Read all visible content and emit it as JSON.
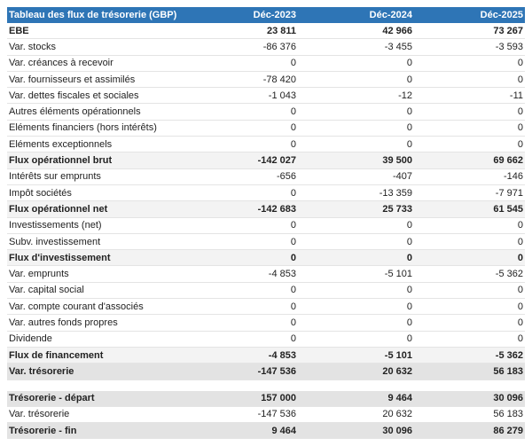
{
  "header": {
    "title": "Tableau des flux de trésorerie (GBP)",
    "columns": [
      "Déc-2023",
      "Déc-2024",
      "Déc-2025"
    ]
  },
  "sections": [
    {
      "rows": [
        [
          "EBE",
          "23 811",
          "42 966",
          "73 267"
        ],
        [
          "Var. stocks",
          "-86 376",
          "-3 455",
          "-3 593"
        ],
        [
          "Var. créances à recevoir",
          "0",
          "0",
          "0"
        ],
        [
          "Var. fournisseurs et assimilés",
          "-78 420",
          "0",
          "0"
        ],
        [
          "Var. dettes fiscales et sociales",
          "-1 043",
          "-12",
          "-11"
        ],
        [
          "Autres éléments opérationnels",
          "0",
          "0",
          "0"
        ],
        [
          "Eléments financiers (hors intérêts)",
          "0",
          "0",
          "0"
        ],
        [
          "Eléments exceptionnels",
          "0",
          "0",
          "0"
        ],
        [
          "Flux opérationnel brut",
          "-142 027",
          "39 500",
          "69 662"
        ],
        [
          "Intérêts sur emprunts",
          "-656",
          "-407",
          "-146"
        ],
        [
          "Impôt sociétés",
          "0",
          "-13 359",
          "-7 971"
        ],
        [
          "Flux opérationnel net",
          "-142 683",
          "25 733",
          "61 545"
        ],
        [
          "Investissements (net)",
          "0",
          "0",
          "0"
        ],
        [
          "Subv. investissement",
          "0",
          "0",
          "0"
        ],
        [
          "Flux d'investissement",
          "0",
          "0",
          "0"
        ],
        [
          "Var. emprunts",
          "-4 853",
          "-5 101",
          "-5 362"
        ],
        [
          "Var. capital social",
          "0",
          "0",
          "0"
        ],
        [
          "Var. compte courant d'associés",
          "0",
          "0",
          "0"
        ],
        [
          "Var. autres fonds propres",
          "0",
          "0",
          "0"
        ],
        [
          "Dividende",
          "0",
          "0",
          "0"
        ],
        [
          "Flux de financement",
          "-4 853",
          "-5 101",
          "-5 362"
        ],
        [
          "Var. trésorerie",
          "-147 536",
          "20 632",
          "56 183"
        ]
      ]
    },
    {
      "rows": [
        [
          "Trésorerie - départ",
          "157 000",
          "9 464",
          "30 096"
        ],
        [
          "Var. trésorerie",
          "-147 536",
          "20 632",
          "56 183"
        ],
        [
          "Trésorerie - fin",
          "9 464",
          "30 096",
          "86 279"
        ]
      ]
    }
  ]
}
